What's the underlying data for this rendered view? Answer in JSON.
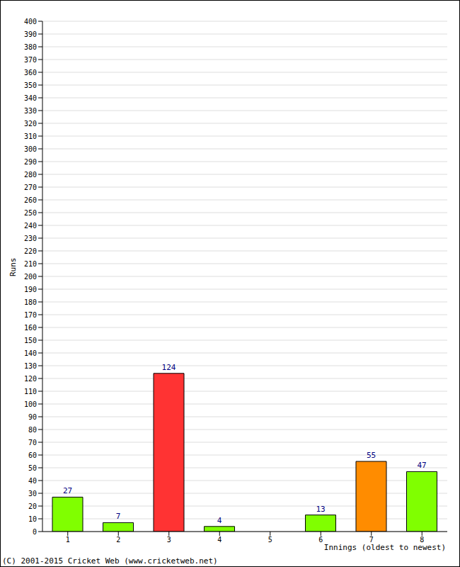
{
  "chart_data": {
    "type": "bar",
    "x_label": "Innings (oldest to newest)",
    "y_label": "Runs",
    "annotations": [
      "(C) 2001-2015 Cricket Web (www.cricketweb.net)"
    ],
    "categories": [
      "1",
      "2",
      "3",
      "4",
      "5",
      "6",
      "7",
      "8"
    ],
    "values": [
      27,
      7,
      124,
      4,
      0,
      13,
      55,
      47
    ],
    "colors": [
      "#80ff00",
      "#80ff00",
      "#ff3333",
      "#80ff00",
      "#80ff00",
      "#80ff00",
      "#ff8c00",
      "#80ff00"
    ],
    "ylim": [
      0,
      400
    ],
    "yticks": [
      0,
      10,
      20,
      30,
      40,
      50,
      60,
      70,
      80,
      90,
      100,
      110,
      120,
      130,
      140,
      150,
      160,
      170,
      180,
      190,
      200,
      210,
      220,
      230,
      240,
      250,
      260,
      270,
      280,
      290,
      300,
      310,
      320,
      330,
      340,
      350,
      360,
      370,
      380,
      390,
      400
    ],
    "grid": true,
    "data_labels": true
  }
}
